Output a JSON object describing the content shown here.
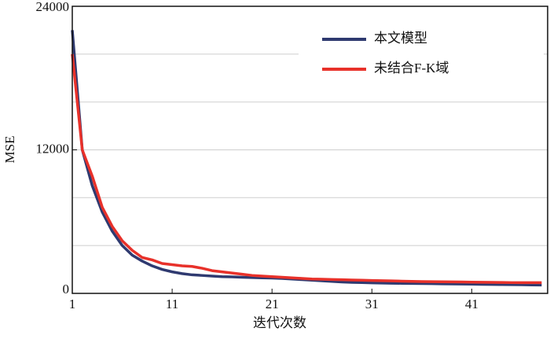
{
  "chart_data": {
    "type": "line",
    "x_label": "迭代次数",
    "y_label": "MSE",
    "x": [
      1,
      2,
      3,
      4,
      5,
      6,
      7,
      8,
      9,
      10,
      11,
      12,
      13,
      14,
      15,
      16,
      17,
      18,
      19,
      20,
      21,
      22,
      23,
      24,
      25,
      26,
      27,
      28,
      29,
      30,
      31,
      32,
      33,
      34,
      35,
      36,
      37,
      38,
      39,
      40,
      41,
      42,
      43,
      44,
      45,
      46,
      47,
      48
    ],
    "series": [
      {
        "name": "本文模型",
        "color": "#2f3a70",
        "values": [
          22000,
          12000,
          9000,
          6800,
          5200,
          4000,
          3200,
          2700,
          2300,
          2000,
          1800,
          1650,
          1550,
          1500,
          1450,
          1400,
          1380,
          1350,
          1320,
          1300,
          1280,
          1250,
          1200,
          1150,
          1100,
          1050,
          1000,
          950,
          920,
          900,
          880,
          860,
          850,
          840,
          830,
          820,
          810,
          800,
          790,
          780,
          770,
          760,
          750,
          740,
          730,
          720,
          710,
          700
        ]
      },
      {
        "name": "未结合F-K域",
        "color": "#e8312a",
        "values": [
          20000,
          12000,
          9800,
          7200,
          5600,
          4400,
          3600,
          3000,
          2800,
          2500,
          2400,
          2300,
          2250,
          2100,
          1900,
          1800,
          1700,
          1600,
          1500,
          1450,
          1400,
          1350,
          1300,
          1250,
          1200,
          1180,
          1160,
          1140,
          1120,
          1100,
          1080,
          1060,
          1040,
          1020,
          1000,
          990,
          980,
          970,
          960,
          950,
          940,
          930,
          920,
          910,
          900,
          900,
          900,
          900
        ]
      }
    ],
    "xlim": [
      1,
      48.6
    ],
    "xticks": [
      1,
      11,
      21,
      31,
      41
    ],
    "ylim": [
      0,
      24000
    ],
    "yticks": [
      0,
      12000,
      24000
    ],
    "ygrid": [
      4000,
      8000,
      12000,
      16000,
      20000
    ],
    "legend": "upper right"
  }
}
